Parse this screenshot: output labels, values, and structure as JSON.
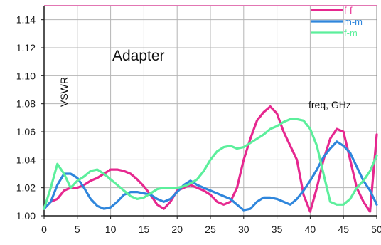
{
  "chart_data": {
    "type": "line",
    "title": "Adapter",
    "ylabel": "VSWR",
    "xlabel": "freq, GHz",
    "xlim": [
      0,
      50
    ],
    "ylim": [
      1.0,
      1.15
    ],
    "xticks": [
      0,
      5,
      10,
      15,
      20,
      25,
      30,
      35,
      40,
      45,
      50
    ],
    "yticks": [
      1.0,
      1.02,
      1.04,
      1.06,
      1.08,
      1.1,
      1.12,
      1.14
    ],
    "grid": true,
    "legend_position": "top-right",
    "colors": {
      "f-f": "#e6288f",
      "m-m": "#2f86dc",
      "f-m": "#5cef9c",
      "grid": "#b5b5b5",
      "axis": "#1a1a1a"
    },
    "series": [
      {
        "name": "f-f",
        "x": [
          0,
          1,
          2,
          3,
          4,
          5,
          6,
          7,
          8,
          9,
          10,
          11,
          12,
          13,
          14,
          15,
          16,
          17,
          18,
          19,
          20,
          21,
          22,
          23,
          24,
          25,
          26,
          27,
          28,
          29,
          30,
          31,
          32,
          33,
          34,
          35,
          36,
          37,
          38,
          39,
          40,
          41,
          42,
          43,
          44,
          45,
          46,
          47,
          48,
          49,
          50
        ],
        "y": [
          1.005,
          1.01,
          1.012,
          1.018,
          1.02,
          1.02,
          1.022,
          1.025,
          1.027,
          1.03,
          1.033,
          1.033,
          1.032,
          1.03,
          1.026,
          1.021,
          1.015,
          1.008,
          1.005,
          1.01,
          1.018,
          1.02,
          1.022,
          1.02,
          1.018,
          1.015,
          1.01,
          1.008,
          1.01,
          1.02,
          1.04,
          1.055,
          1.068,
          1.074,
          1.078,
          1.073,
          1.06,
          1.05,
          1.04,
          1.015,
          1.003,
          1.02,
          1.04,
          1.055,
          1.062,
          1.06,
          1.04,
          1.02,
          1.01,
          1.003,
          1.058
        ]
      },
      {
        "name": "m-m",
        "x": [
          0,
          1,
          2,
          3,
          4,
          5,
          6,
          7,
          8,
          9,
          10,
          11,
          12,
          13,
          14,
          15,
          16,
          17,
          18,
          19,
          20,
          21,
          22,
          23,
          24,
          25,
          26,
          27,
          28,
          29,
          30,
          31,
          32,
          33,
          34,
          35,
          36,
          37,
          38,
          39,
          40,
          41,
          42,
          43,
          44,
          45,
          46,
          47,
          48,
          49,
          50
        ],
        "y": [
          1.005,
          1.01,
          1.022,
          1.03,
          1.03,
          1.027,
          1.02,
          1.012,
          1.007,
          1.005,
          1.006,
          1.01,
          1.015,
          1.017,
          1.017,
          1.016,
          1.015,
          1.012,
          1.01,
          1.012,
          1.017,
          1.022,
          1.025,
          1.022,
          1.02,
          1.018,
          1.016,
          1.014,
          1.012,
          1.008,
          1.004,
          1.005,
          1.01,
          1.013,
          1.013,
          1.012,
          1.01,
          1.008,
          1.012,
          1.018,
          1.025,
          1.033,
          1.042,
          1.048,
          1.053,
          1.05,
          1.045,
          1.035,
          1.025,
          1.018,
          1.008
        ]
      },
      {
        "name": "f-m",
        "x": [
          0,
          1,
          2,
          3,
          4,
          5,
          6,
          7,
          8,
          9,
          10,
          11,
          12,
          13,
          14,
          15,
          16,
          17,
          18,
          19,
          20,
          21,
          22,
          23,
          24,
          25,
          26,
          27,
          28,
          29,
          30,
          31,
          32,
          33,
          34,
          35,
          36,
          37,
          38,
          39,
          40,
          41,
          42,
          43,
          44,
          45,
          46,
          47,
          48,
          49,
          50
        ],
        "y": [
          1.005,
          1.02,
          1.037,
          1.03,
          1.02,
          1.025,
          1.028,
          1.032,
          1.033,
          1.03,
          1.026,
          1.022,
          1.018,
          1.014,
          1.012,
          1.013,
          1.016,
          1.019,
          1.02,
          1.02,
          1.02,
          1.021,
          1.023,
          1.026,
          1.032,
          1.04,
          1.046,
          1.049,
          1.05,
          1.048,
          1.049,
          1.052,
          1.055,
          1.058,
          1.062,
          1.064,
          1.067,
          1.069,
          1.069,
          1.068,
          1.062,
          1.05,
          1.03,
          1.01,
          1.008,
          1.008,
          1.012,
          1.02,
          1.025,
          1.032,
          1.043
        ]
      }
    ]
  }
}
